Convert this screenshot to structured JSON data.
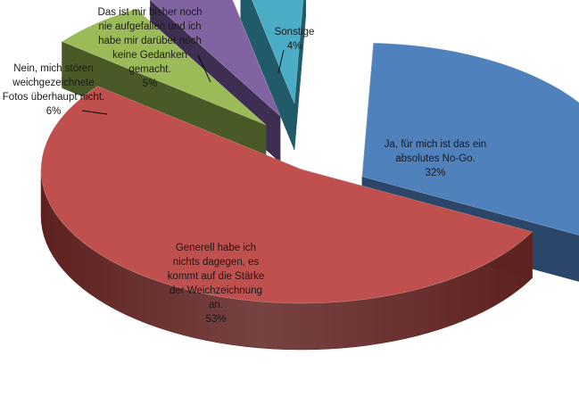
{
  "chart_data": {
    "type": "pie",
    "title": "",
    "style": "3d-exploded",
    "slices": [
      {
        "label": "Ja, für mich ist das ein absolutes No-Go.",
        "value": 32,
        "value_label": "32%",
        "color": "#4f81bd",
        "dark": "#2b4669",
        "label_lines": [
          "Ja, für mich ist das ein",
          "absolutes  No-Go.",
          "32%"
        ]
      },
      {
        "label": "Generell habe ich nichts dagegen, es kommt auf die Stärke der Weichzeichnung an.",
        "value": 53,
        "value_label": "53%",
        "color": "#c0504d",
        "dark": "#5e2220",
        "label_lines": [
          "Generell habe ich",
          "nichts dagegen, es",
          "kommt auf die Stärke",
          "der Weichzeichnung",
          "an.",
          "53%"
        ]
      },
      {
        "label": "Nein, mich stören weichgezeichnete Fotos überhaupt nicht.",
        "value": 6,
        "value_label": "6%",
        "color": "#9bbb59",
        "dark": "#4a5a26",
        "label_lines": [
          "Nein, mich stören",
          "weichgezeichnete",
          "Fotos überhaupt nicht.",
          "6%"
        ]
      },
      {
        "label": "Das ist mir bisher noch nie aufgefallen und ich habe mir darüber noch keine Gedanken gemacht.",
        "value": 5,
        "value_label": "5%",
        "color": "#8064a2",
        "dark": "#3e2f52",
        "label_lines": [
          "Das ist mir bisher noch",
          "nie aufgefallen und ich",
          "habe mir darüber noch",
          "keine Gedanken",
          "gemacht.",
          "5%"
        ]
      },
      {
        "label": "Sonstige",
        "value": 4,
        "value_label": "4%",
        "color": "#4bacc6",
        "dark": "#215a69",
        "label_lines": [
          "Sonstige",
          "4%"
        ]
      }
    ]
  }
}
